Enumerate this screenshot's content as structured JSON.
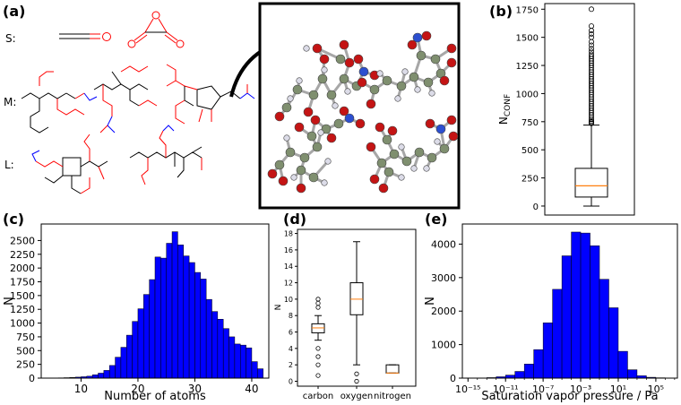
{
  "panel_labels": {
    "a": "(a)",
    "b": "(b)",
    "c": "(c)",
    "d": "(d)",
    "e": "(e)"
  },
  "row_labels": {
    "s": "S:",
    "m": "M:",
    "l": "L:"
  },
  "colors": {
    "bar": "#0000ff",
    "median": "#ff7f0e",
    "oxygen_atom": "#c41414",
    "carbon_atom": "#7f8f6f",
    "nitrogen_atom": "#2c4fd0",
    "hydrogen_atom": "#dcdce8",
    "bond_o": "#ff0000",
    "bond_n": "#0000ff"
  },
  "chart_data": [
    {
      "id": "b",
      "type": "box",
      "title": "",
      "ylabel_main": "N",
      "ylabel_sub": "CONF",
      "ylim": [
        -80,
        1800
      ],
      "yticks": [
        0,
        250,
        500,
        750,
        1000,
        1250,
        1500,
        1750
      ],
      "box": {
        "whisker_low": 0,
        "q1": 80,
        "median": 180,
        "q3": 335,
        "whisker_high": 720
      },
      "outliers": [
        735,
        745,
        755,
        770,
        790,
        810,
        830,
        850,
        870,
        890,
        910,
        930,
        950,
        970,
        990,
        1010,
        1030,
        1050,
        1070,
        1090,
        1110,
        1130,
        1150,
        1170,
        1190,
        1210,
        1230,
        1250,
        1270,
        1290,
        1310,
        1330,
        1350,
        1375,
        1400,
        1430,
        1460,
        1500,
        1530,
        1560,
        1600,
        1750
      ]
    },
    {
      "id": "c",
      "type": "bar",
      "xlabel": "Number of atoms",
      "ylabel": "N",
      "xlim": [
        3,
        43
      ],
      "ylim": [
        0,
        2800
      ],
      "xticks": [
        10,
        20,
        30,
        40
      ],
      "yticks": [
        0,
        250,
        500,
        750,
        1000,
        1250,
        1500,
        1750,
        2000,
        2250,
        2500
      ],
      "bin_edges": [
        4,
        5,
        6,
        7,
        8,
        9,
        10,
        11,
        12,
        13,
        14,
        15,
        16,
        17,
        18,
        19,
        20,
        21,
        22,
        23,
        24,
        25,
        26,
        27,
        28,
        29,
        30,
        31,
        32,
        33,
        34,
        35,
        36,
        37,
        38,
        39,
        40,
        41,
        42
      ],
      "values": [
        2,
        3,
        5,
        8,
        12,
        18,
        25,
        35,
        60,
        90,
        140,
        230,
        380,
        560,
        780,
        1030,
        1260,
        1520,
        1790,
        2200,
        2180,
        2450,
        2660,
        2420,
        2220,
        2100,
        1920,
        1800,
        1430,
        1210,
        1070,
        900,
        750,
        620,
        600,
        550,
        300,
        170
      ]
    },
    {
      "id": "d",
      "type": "box",
      "ylabel": "N",
      "ylim": [
        -0.6,
        18.5
      ],
      "yticks": [
        0,
        2,
        4,
        6,
        8,
        10,
        12,
        14,
        16,
        18
      ],
      "categories": [
        "carbon",
        "oxygen",
        "nitrogen"
      ],
      "boxes": [
        {
          "whisker_low": 5,
          "q1": 5.9,
          "median": 6.5,
          "q3": 7,
          "whisker_high": 8,
          "outliers": [
            0.7,
            2,
            3,
            4,
            9,
            9.5,
            10
          ]
        },
        {
          "whisker_low": 2,
          "q1": 8.1,
          "median": 10,
          "q3": 12,
          "whisker_high": 17,
          "outliers": [
            0,
            0.9
          ]
        },
        {
          "whisker_low": 1,
          "q1": 1,
          "median": 1,
          "q3": 2,
          "whisker_high": 2,
          "outliers": []
        }
      ]
    },
    {
      "id": "e",
      "type": "bar",
      "xlabel": "Saturation vapor pressure / Pa",
      "ylabel": "N",
      "x_log10_range": [
        -15.6,
        7.3
      ],
      "ylim": [
        0,
        4600
      ],
      "xtick_exponents": [
        -15,
        -11,
        -7,
        -3,
        1,
        5
      ],
      "xtick_labels": [
        "10⁻¹⁵",
        "10⁻¹¹",
        "10⁻⁷",
        "10⁻³",
        "10¹",
        "10⁵"
      ],
      "yticks": [
        0,
        1000,
        2000,
        3000,
        4000
      ],
      "bin_edges_log10": [
        -14,
        -13,
        -12,
        -11,
        -10,
        -9,
        -8,
        -7,
        -6,
        -5,
        -4,
        -3,
        -2,
        -1,
        0,
        1,
        2,
        3,
        4,
        5,
        6
      ],
      "values": [
        5,
        15,
        40,
        90,
        200,
        420,
        850,
        1650,
        2650,
        3650,
        4360,
        4330,
        3950,
        2950,
        2100,
        800,
        250,
        70,
        25,
        10
      ]
    }
  ]
}
